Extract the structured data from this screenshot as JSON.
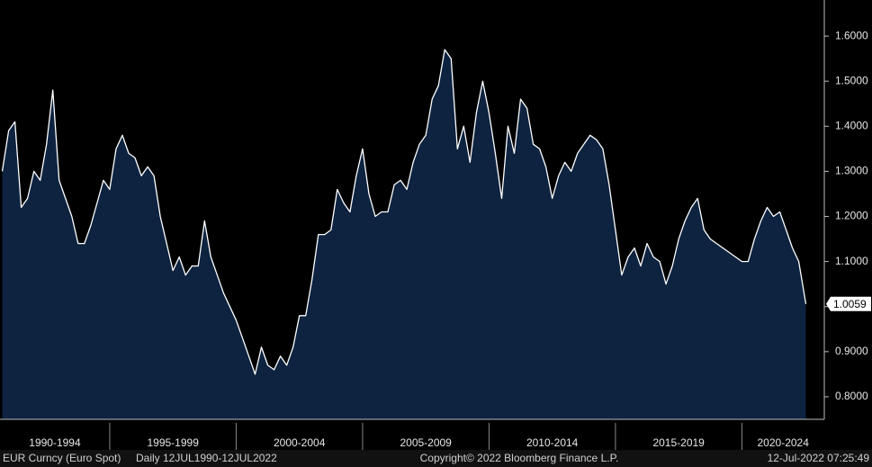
{
  "chart_data": {
    "type": "area",
    "security": "EUR Curncy (Euro Spot)",
    "period": "Daily 12JUL1990-12JUL2022",
    "copyright": "Copyright© 2022 Bloomberg Finance L.P.",
    "timestamp": "12-Jul-2022 07:25:49",
    "last_value": 1.0059,
    "line_color": "#ffffff",
    "fill_color": "#0d2340",
    "xlim": [
      1990.66,
      2023.26
    ],
    "ylim": [
      0.75,
      1.68
    ],
    "xticks": [
      {
        "value": 1990,
        "label": "1990-1994"
      },
      {
        "value": 1995,
        "label": "1995-1999"
      },
      {
        "value": 2000,
        "label": "2000-2004"
      },
      {
        "value": 2005,
        "label": "2005-2009"
      },
      {
        "value": 2010,
        "label": "2010-2014"
      },
      {
        "value": 2015,
        "label": "2015-2019"
      },
      {
        "value": 2020,
        "label": "2020-2024"
      }
    ],
    "yticks": [
      {
        "value": 0.8,
        "label": "0.8000"
      },
      {
        "value": 0.9,
        "label": "0.9000"
      },
      {
        "value": 1.0,
        "label": "1.0000"
      },
      {
        "value": 1.1,
        "label": "1.1000"
      },
      {
        "value": 1.2,
        "label": "1.2000"
      },
      {
        "value": 1.3,
        "label": "1.3000"
      },
      {
        "value": 1.4,
        "label": "1.4000"
      },
      {
        "value": 1.5,
        "label": "1.5000"
      },
      {
        "value": 1.6,
        "label": "1.6000"
      }
    ],
    "x": [
      1990.75,
      1991.0,
      1991.25,
      1991.5,
      1991.75,
      1992.0,
      1992.25,
      1992.5,
      1992.75,
      1993.0,
      1993.25,
      1993.5,
      1993.75,
      1994.0,
      1994.25,
      1994.5,
      1994.75,
      1995.0,
      1995.25,
      1995.5,
      1995.75,
      1996.0,
      1996.25,
      1996.5,
      1996.75,
      1997.0,
      1997.25,
      1997.5,
      1997.75,
      1998.0,
      1998.25,
      1998.5,
      1998.75,
      1999.0,
      1999.25,
      1999.5,
      1999.75,
      2000.0,
      2000.25,
      2000.5,
      2000.75,
      2001.0,
      2001.25,
      2001.5,
      2001.75,
      2002.0,
      2002.25,
      2002.5,
      2002.75,
      2003.0,
      2003.25,
      2003.5,
      2003.75,
      2004.0,
      2004.25,
      2004.5,
      2004.75,
      2005.0,
      2005.25,
      2005.5,
      2005.75,
      2006.0,
      2006.25,
      2006.5,
      2006.75,
      2007.0,
      2007.25,
      2007.5,
      2007.75,
      2008.0,
      2008.25,
      2008.5,
      2008.75,
      2009.0,
      2009.25,
      2009.5,
      2009.75,
      2010.0,
      2010.25,
      2010.5,
      2010.75,
      2011.0,
      2011.25,
      2011.5,
      2011.75,
      2012.0,
      2012.25,
      2012.5,
      2012.75,
      2013.0,
      2013.25,
      2013.5,
      2013.75,
      2014.0,
      2014.25,
      2014.5,
      2014.75,
      2015.0,
      2015.25,
      2015.5,
      2015.75,
      2016.0,
      2016.25,
      2016.5,
      2016.75,
      2017.0,
      2017.25,
      2017.5,
      2017.75,
      2018.0,
      2018.25,
      2018.5,
      2018.75,
      2019.0,
      2019.25,
      2019.5,
      2019.75,
      2020.0,
      2020.25,
      2020.5,
      2020.75,
      2021.0,
      2021.25,
      2021.5,
      2021.75,
      2022.0,
      2022.25,
      2022.53
    ],
    "values": [
      1.3,
      1.39,
      1.41,
      1.22,
      1.24,
      1.3,
      1.28,
      1.36,
      1.48,
      1.28,
      1.24,
      1.2,
      1.14,
      1.14,
      1.18,
      1.23,
      1.28,
      1.26,
      1.35,
      1.38,
      1.34,
      1.33,
      1.29,
      1.31,
      1.29,
      1.2,
      1.14,
      1.08,
      1.11,
      1.07,
      1.09,
      1.09,
      1.19,
      1.11,
      1.07,
      1.03,
      1.0,
      0.97,
      0.93,
      0.89,
      0.85,
      0.91,
      0.87,
      0.86,
      0.89,
      0.87,
      0.91,
      0.98,
      0.98,
      1.06,
      1.16,
      1.16,
      1.17,
      1.26,
      1.23,
      1.21,
      1.29,
      1.35,
      1.25,
      1.2,
      1.21,
      1.21,
      1.27,
      1.28,
      1.26,
      1.32,
      1.36,
      1.38,
      1.46,
      1.49,
      1.57,
      1.55,
      1.35,
      1.4,
      1.32,
      1.43,
      1.5,
      1.43,
      1.34,
      1.24,
      1.4,
      1.34,
      1.46,
      1.44,
      1.36,
      1.35,
      1.31,
      1.24,
      1.29,
      1.32,
      1.3,
      1.34,
      1.36,
      1.38,
      1.37,
      1.35,
      1.27,
      1.17,
      1.07,
      1.11,
      1.13,
      1.09,
      1.14,
      1.11,
      1.1,
      1.05,
      1.09,
      1.15,
      1.19,
      1.22,
      1.24,
      1.17,
      1.15,
      1.14,
      1.13,
      1.12,
      1.11,
      1.1,
      1.1,
      1.15,
      1.19,
      1.22,
      1.2,
      1.21,
      1.17,
      1.13,
      1.1,
      1.0059
    ]
  }
}
